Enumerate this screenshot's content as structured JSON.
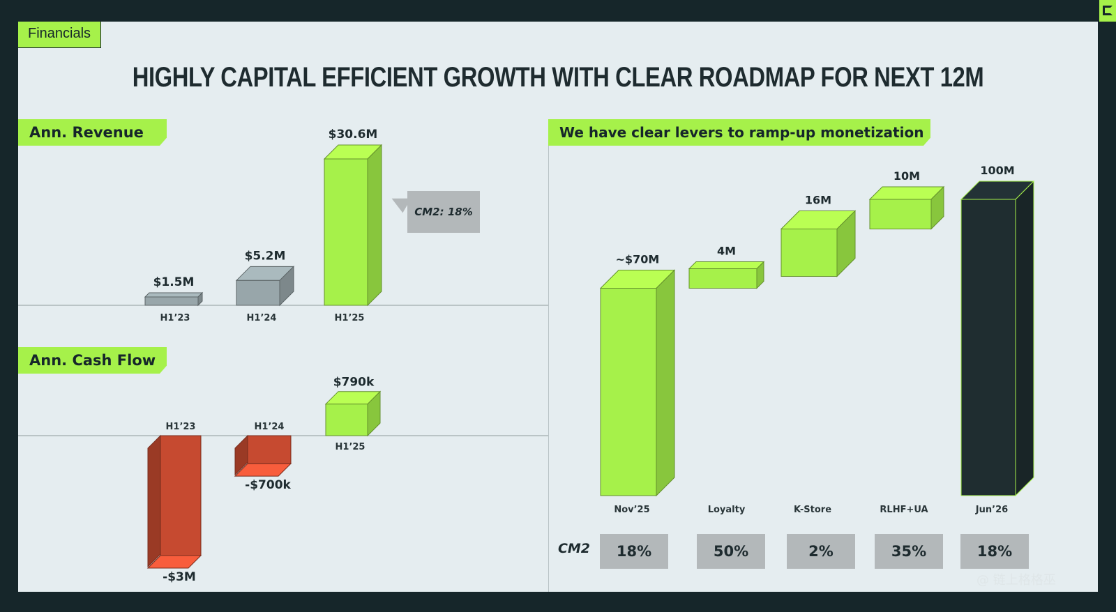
{
  "header": {
    "tag": "Financials",
    "title": "HIGHLY CAPITAL EFFICIENT GROWTH WITH CLEAR ROADMAP FOR NEXT 12M"
  },
  "sections": {
    "revenue_label": "Ann. Revenue",
    "cashflow_label": "Ann. Cash Flow",
    "levers_label": "We have clear levers to ramp-up monetization"
  },
  "callout": {
    "text": "CM2: 18%"
  },
  "cm2": {
    "label": "CM2",
    "values": [
      "18%",
      "50%",
      "2%",
      "35%",
      "18%"
    ]
  },
  "watermark": "@ 链上格格巫",
  "colors": {
    "green": "#a6f14a",
    "green_side": "#86cc36",
    "grey": "#98a6aa",
    "red": "#c64a30",
    "dark": "#1f2d30",
    "background": "#e5edf0"
  },
  "chart_data": [
    {
      "type": "bar",
      "title": "Ann. Revenue",
      "categories": [
        "H1’23",
        "H1’24",
        "H1’25"
      ],
      "values": [
        1.5,
        5.2,
        30.6
      ],
      "value_labels": [
        "$1.5M",
        "$5.2M",
        "$30.6M"
      ],
      "unit": "$M",
      "colors": [
        "#98a6aa",
        "#98a6aa",
        "#a6f14a"
      ]
    },
    {
      "type": "bar",
      "title": "Ann. Cash Flow",
      "categories": [
        "H1’23",
        "H1’24",
        "H1’25"
      ],
      "values": [
        -3000,
        -700,
        790
      ],
      "value_labels": [
        "-$3M",
        "-$700k",
        "$790k"
      ],
      "unit": "$k",
      "colors": [
        "#c64a30",
        "#c64a30",
        "#a6f14a"
      ]
    },
    {
      "type": "bar",
      "subtype": "waterfall",
      "title": "We have clear levers to ramp-up monetization",
      "categories": [
        "Nov’25",
        "Loyalty",
        "K-Store",
        "RLHF+UA",
        "Jun’26"
      ],
      "values": [
        70,
        4,
        16,
        10,
        100
      ],
      "value_labels": [
        "~$70M",
        "4M",
        "16M",
        "10M",
        "100M"
      ],
      "waterfall_base": [
        0,
        70,
        74,
        90,
        0
      ],
      "colors": [
        "#a6f14a",
        "#a6f14a",
        "#a6f14a",
        "#a6f14a",
        "#1f2d30"
      ]
    }
  ]
}
